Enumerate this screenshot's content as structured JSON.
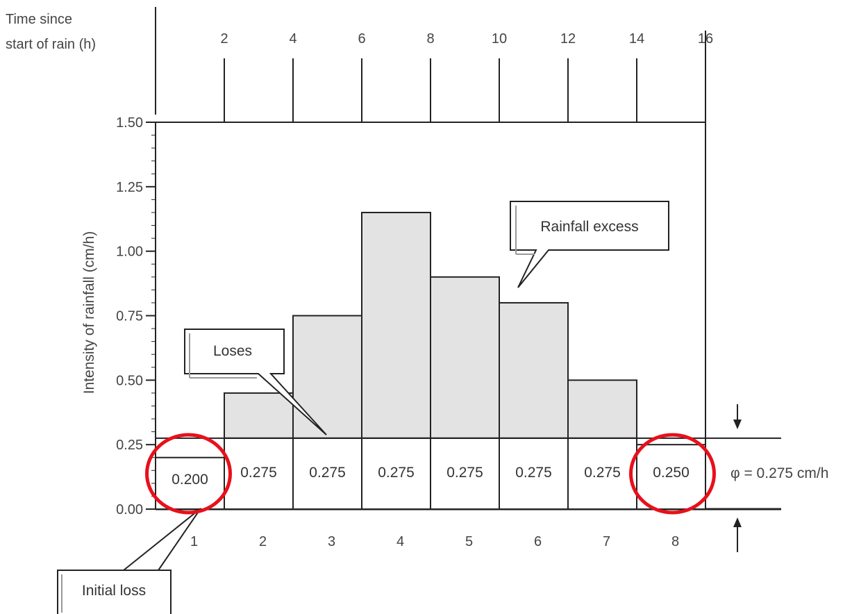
{
  "chart_data": {
    "type": "bar",
    "time_axis": {
      "label_line1": "Time since",
      "label_line2": "start of rain (h)",
      "ticks": [
        "2",
        "4",
        "6",
        "8",
        "10",
        "12",
        "14",
        "16"
      ]
    },
    "ylabel": "Intensity of rainfall (cm/h)",
    "ylim": [
      0,
      1.5
    ],
    "y_ticks": [
      "0.00",
      "0.25",
      "0.50",
      "0.75",
      "1.00",
      "1.25",
      "1.50"
    ],
    "categories": [
      "1",
      "2",
      "3",
      "4",
      "5",
      "6",
      "7",
      "8"
    ],
    "series": [
      {
        "values": [
          0.2,
          0.45,
          0.75,
          1.15,
          0.9,
          0.8,
          0.5,
          0.25
        ]
      }
    ],
    "loss_values": [
      0.2,
      0.275,
      0.275,
      0.275,
      0.275,
      0.275,
      0.275,
      0.25
    ],
    "loss_labels": [
      "0.200",
      "0.275",
      "0.275",
      "0.275",
      "0.275",
      "0.275",
      "0.275",
      "0.250"
    ],
    "phi_index": 0.275,
    "phi_label": "φ = 0.275 cm/h",
    "annotations": {
      "rainfall_excess": "Rainfall excess",
      "losses": "Loses",
      "initial_loss": "Initial loss"
    },
    "highlighted_categories": [
      "1",
      "8"
    ],
    "colors": {
      "bar_fill": "#e3e3e3",
      "highlight": "#e8101a",
      "axis": "#222222"
    }
  }
}
